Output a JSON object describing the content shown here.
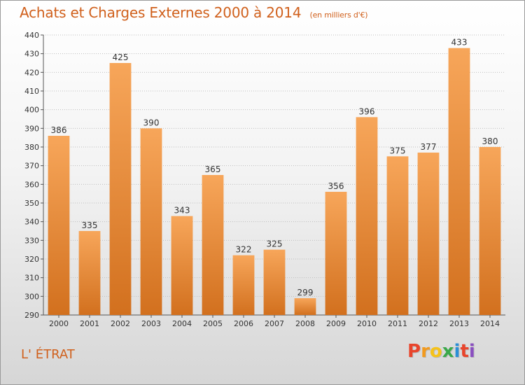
{
  "title": "Achats et Charges Externes 2000 à 2014",
  "subtitle": "(en milliers d'€)",
  "commune": "L' ÉTRAT",
  "brand": {
    "letters": [
      "P",
      "r",
      "o",
      "x",
      "i",
      "t",
      "i"
    ],
    "colors": [
      "#e8452c",
      "#f29a1e",
      "#f5c21a",
      "#3aa84a",
      "#2b8fd6",
      "#e8452c",
      "#8a4fc0"
    ]
  },
  "colors": {
    "bar_top": "#f7a65a",
    "bar_bottom": "#d2701e",
    "title": "#d0601c",
    "grid": "#bfbfbf"
  },
  "chart_data": {
    "type": "bar",
    "title": "Achats et Charges Externes 2000 à 2014",
    "xlabel": "",
    "ylabel": "",
    "categories": [
      "2000",
      "2001",
      "2002",
      "2003",
      "2004",
      "2005",
      "2006",
      "2007",
      "2008",
      "2009",
      "2010",
      "2011",
      "2012",
      "2013",
      "2014"
    ],
    "values": [
      386,
      335,
      425,
      390,
      343,
      365,
      322,
      325,
      299,
      356,
      396,
      375,
      377,
      433,
      380
    ],
    "ylim": [
      290,
      440
    ],
    "yticks": [
      290,
      300,
      310,
      320,
      330,
      340,
      350,
      360,
      370,
      380,
      390,
      400,
      410,
      420,
      430,
      440
    ],
    "grid": true,
    "data_labels": true
  }
}
